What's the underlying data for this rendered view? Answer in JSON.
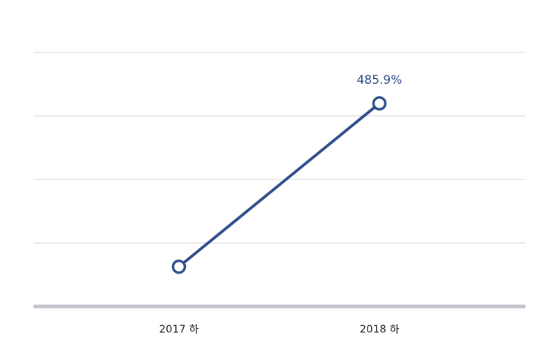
{
  "chart_data": {
    "type": "line",
    "categories": [
      "2017 하",
      "2018 하"
    ],
    "series": [
      {
        "color": "#2e4d8a",
        "values": [
          95,
          485.9
        ],
        "value_labels": [
          null,
          "485.9%"
        ]
      }
    ],
    "ylim": [
      0,
      608
    ],
    "yticks": [
      0,
      152,
      304,
      456,
      608
    ],
    "grid": true
  }
}
